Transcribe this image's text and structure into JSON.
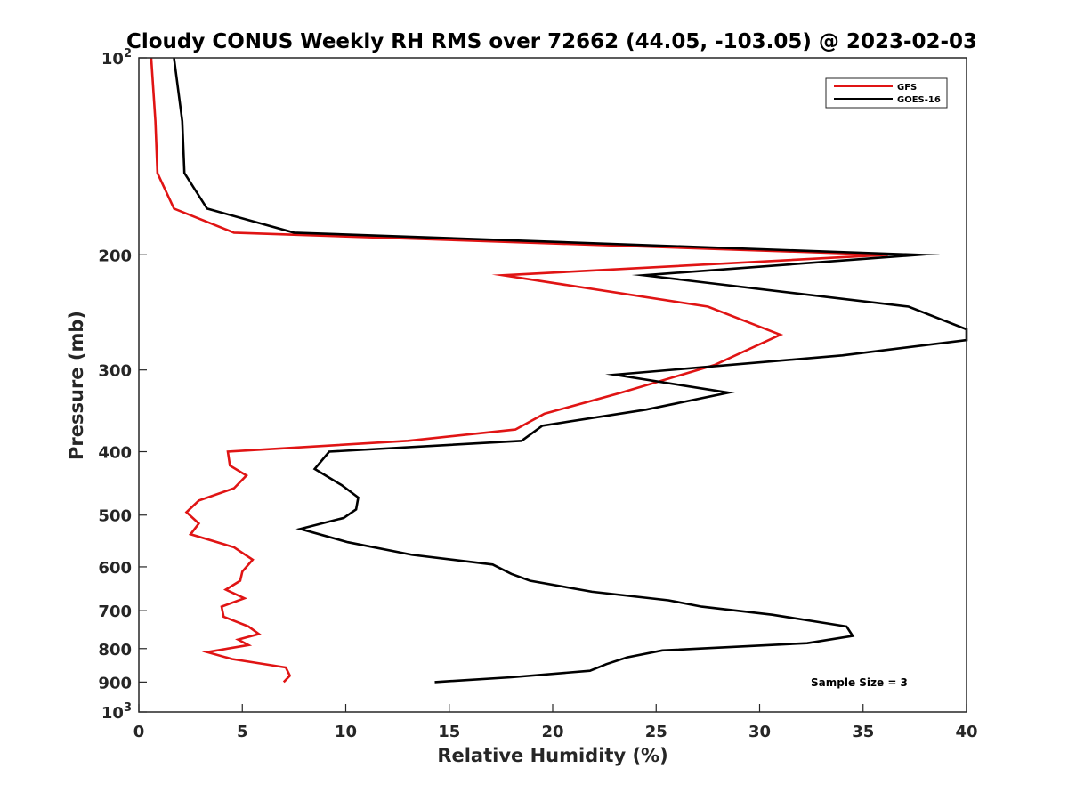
{
  "chart_data": {
    "type": "line",
    "title": "Cloudy CONUS Weekly RH RMS over 72662 (44.05, -103.05) @ 2023-02-03",
    "xlabel": "Relative Humidity (%)",
    "ylabel": "Pressure (mb)",
    "xlim": [
      0,
      40
    ],
    "ylim": [
      100,
      1000
    ],
    "y_scale": "log",
    "y_reversed": true,
    "grid": false,
    "legend_position": "top-right",
    "x_ticks": [
      "0",
      "5",
      "10",
      "15",
      "20",
      "25",
      "30",
      "35",
      "40"
    ],
    "y_ticks": [
      {
        "value": 100,
        "base": "10",
        "exp": "2"
      },
      {
        "value": 200,
        "label": "200"
      },
      {
        "value": 300,
        "label": "300"
      },
      {
        "value": 400,
        "label": "400"
      },
      {
        "value": 500,
        "label": "500"
      },
      {
        "value": 600,
        "label": "600"
      },
      {
        "value": 700,
        "label": "700"
      },
      {
        "value": 800,
        "label": "800"
      },
      {
        "value": 900,
        "label": "900"
      },
      {
        "value": 1000,
        "base": "10",
        "exp": "3"
      }
    ],
    "annotation": "Sample Size = 3",
    "series": [
      {
        "name": "GFS",
        "color": "#e01414",
        "points": [
          [
            0.6,
            100
          ],
          [
            0.8,
            125
          ],
          [
            0.9,
            150
          ],
          [
            1.7,
            170
          ],
          [
            4.6,
            185
          ],
          [
            36.2,
            200
          ],
          [
            17.6,
            215
          ],
          [
            27.5,
            240
          ],
          [
            31.0,
            265
          ],
          [
            27.8,
            295
          ],
          [
            23.3,
            325
          ],
          [
            19.6,
            350
          ],
          [
            18.2,
            370
          ],
          [
            13.0,
            385
          ],
          [
            4.3,
            400
          ],
          [
            4.4,
            420
          ],
          [
            5.2,
            435
          ],
          [
            4.6,
            455
          ],
          [
            2.9,
            475
          ],
          [
            2.3,
            495
          ],
          [
            2.9,
            515
          ],
          [
            2.5,
            535
          ],
          [
            4.6,
            560
          ],
          [
            5.5,
            585
          ],
          [
            5.0,
            610
          ],
          [
            4.9,
            630
          ],
          [
            4.2,
            650
          ],
          [
            5.1,
            670
          ],
          [
            4.0,
            690
          ],
          [
            4.1,
            715
          ],
          [
            5.3,
            740
          ],
          [
            5.8,
            760
          ],
          [
            4.8,
            775
          ],
          [
            5.3,
            790
          ],
          [
            3.3,
            810
          ],
          [
            4.5,
            830
          ],
          [
            7.1,
            855
          ],
          [
            7.3,
            880
          ],
          [
            7.0,
            900
          ]
        ]
      },
      {
        "name": "GOES-16",
        "color": "#000000",
        "points": [
          [
            1.7,
            100
          ],
          [
            2.1,
            125
          ],
          [
            2.2,
            150
          ],
          [
            3.3,
            170
          ],
          [
            7.5,
            185
          ],
          [
            37.7,
            200
          ],
          [
            24.4,
            215
          ],
          [
            37.2,
            240
          ],
          [
            40.0,
            260
          ],
          [
            40.0,
            270
          ],
          [
            34.0,
            285
          ],
          [
            23.0,
            305
          ],
          [
            28.5,
            325
          ],
          [
            24.5,
            345
          ],
          [
            19.5,
            365
          ],
          [
            18.5,
            385
          ],
          [
            9.2,
            400
          ],
          [
            8.5,
            425
          ],
          [
            9.8,
            450
          ],
          [
            10.6,
            470
          ],
          [
            10.5,
            490
          ],
          [
            9.9,
            505
          ],
          [
            7.8,
            525
          ],
          [
            10.1,
            550
          ],
          [
            13.2,
            575
          ],
          [
            17.1,
            595
          ],
          [
            18.0,
            615
          ],
          [
            18.9,
            630
          ],
          [
            21.9,
            655
          ],
          [
            25.6,
            675
          ],
          [
            27.2,
            690
          ],
          [
            30.6,
            710
          ],
          [
            34.2,
            740
          ],
          [
            34.5,
            765
          ],
          [
            32.3,
            785
          ],
          [
            25.3,
            805
          ],
          [
            23.6,
            825
          ],
          [
            22.6,
            845
          ],
          [
            21.8,
            865
          ],
          [
            18.0,
            885
          ],
          [
            14.3,
            900
          ]
        ]
      }
    ]
  }
}
